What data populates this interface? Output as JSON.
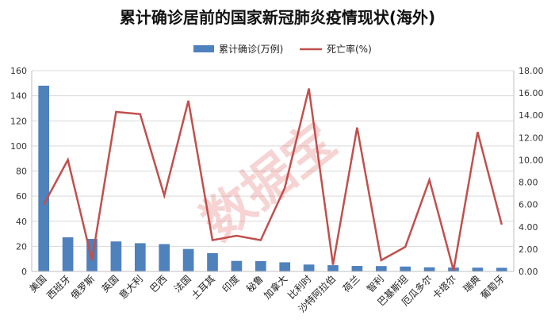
{
  "chart_data": {
    "type": "bar",
    "title": "累计确诊居前的国家新冠肺炎疫情现状(海外)",
    "categories": [
      "美国",
      "西班牙",
      "俄罗斯",
      "英国",
      "意大利",
      "巴西",
      "法国",
      "土耳其",
      "印度",
      "秘鲁",
      "加拿大",
      "比利时",
      "沙特阿拉伯",
      "荷兰",
      "智利",
      "巴基斯坦",
      "厄瓜多尔",
      "卡塔尔",
      "瑞典",
      "葡萄牙"
    ],
    "series": [
      {
        "name": "累计确诊(万例)",
        "axis": "left",
        "kind": "bar",
        "color": "#4f81bd",
        "values": [
          148,
          27.2,
          25.9,
          23.9,
          22.5,
          21.8,
          17.9,
          14.6,
          8.4,
          8.2,
          7.3,
          5.5,
          5.0,
          4.4,
          4.3,
          3.9,
          3.3,
          3.1,
          3.0,
          2.9
        ]
      },
      {
        "name": "死亡率(%)",
        "axis": "right",
        "kind": "line",
        "color": "#c0504d",
        "values": [
          6.0,
          10.0,
          1.0,
          14.3,
          14.1,
          6.8,
          15.3,
          2.8,
          3.2,
          2.8,
          7.5,
          16.4,
          0.6,
          12.9,
          1.0,
          2.2,
          8.2,
          0.1,
          12.5,
          4.2
        ]
      }
    ],
    "y_left": {
      "min": 0,
      "max": 160,
      "step": 20,
      "ticks": [
        "0",
        "20",
        "40",
        "60",
        "80",
        "100",
        "120",
        "140",
        "160"
      ]
    },
    "y_right": {
      "min": 0,
      "max": 18,
      "step": 2,
      "ticks": [
        "0.00",
        "2.00",
        "4.00",
        "6.00",
        "8.00",
        "10.00",
        "12.00",
        "14.00",
        "16.00",
        "18.00"
      ]
    },
    "grid": true,
    "legend": "top-center",
    "watermark": "数据宝"
  }
}
